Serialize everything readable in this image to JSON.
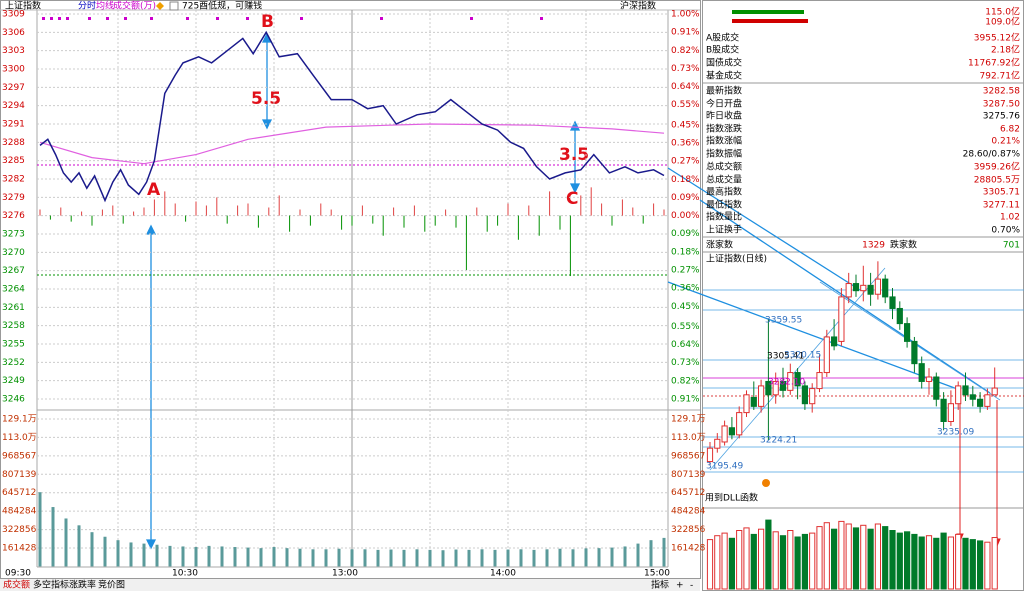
{
  "toolbar": {
    "index_name": "上证指数",
    "view": "分时",
    "legend": [
      "均线",
      "成交额(万)"
    ],
    "notice": "725酉低规，可赚钱",
    "market": "沪深指数"
  },
  "intraday": {
    "price_ticks": [
      3309,
      3306,
      3303,
      3300,
      3297,
      3294,
      3291,
      3288,
      3285,
      3282,
      3279,
      3276,
      3273,
      3270,
      3267,
      3264,
      3261,
      3258,
      3255,
      3252,
      3249,
      3246
    ],
    "pct_ticks": [
      {
        "value": 1.0,
        "label": "1.00%"
      },
      {
        "value": 0.91,
        "label": "0.91%"
      },
      {
        "value": 0.82,
        "label": "0.82%"
      },
      {
        "value": 0.73,
        "label": "0.73%"
      },
      {
        "value": 0.64,
        "label": "0.64%"
      },
      {
        "value": 0.55,
        "label": "0.55%"
      },
      {
        "value": 0.45,
        "label": "0.45%"
      },
      {
        "value": 0.36,
        "label": "0.36%"
      },
      {
        "value": 0.27,
        "label": "0.27%"
      },
      {
        "value": 0.18,
        "label": "0.18%"
      },
      {
        "value": 0.09,
        "label": "0.09%"
      },
      {
        "value": 0,
        "label": "0.00%"
      },
      {
        "value": -0.09,
        "label": "0.09%"
      },
      {
        "value": -0.18,
        "label": "0.18%"
      },
      {
        "value": -0.27,
        "label": "0.27%"
      },
      {
        "value": -0.36,
        "label": "0.36%"
      },
      {
        "value": -0.45,
        "label": "0.45%"
      },
      {
        "value": -0.55,
        "label": "0.55%"
      },
      {
        "value": -0.64,
        "label": "0.64%"
      },
      {
        "value": -0.73,
        "label": "0.73%"
      },
      {
        "value": -0.82,
        "label": "0.82%"
      },
      {
        "value": -0.91,
        "label": "0.91%"
      }
    ],
    "volume_ticks": [
      {
        "value": 1291000,
        "label": "129.1万"
      },
      {
        "value": 1130000,
        "label": "113.0万"
      },
      968567,
      807139,
      645712,
      484284,
      322856,
      161428
    ],
    "time_labels": [
      "09:30",
      "10:30",
      "13:00",
      "14:00",
      "15:00"
    ],
    "price": {
      "minutes": [
        0,
        3,
        6,
        9,
        12,
        15,
        18,
        21,
        25,
        28,
        31,
        34,
        38,
        41,
        44,
        48,
        52,
        55,
        61,
        66,
        72,
        78,
        82,
        87,
        92,
        99,
        105,
        112,
        120,
        126,
        132,
        137,
        145,
        152,
        158,
        164,
        170,
        176,
        181,
        186,
        191,
        196,
        202,
        208,
        213,
        219,
        225,
        230,
        236,
        240
      ],
      "values": [
        3287.5,
        3288.5,
        3286,
        3283,
        3281.5,
        3283,
        3280.5,
        3282.5,
        3278.5,
        3281.5,
        3283.5,
        3281,
        3279.5,
        3281.5,
        3285,
        3296,
        3299,
        3301,
        3302,
        3301,
        3303,
        3305,
        3302.5,
        3306,
        3302,
        3302.5,
        3299,
        3295,
        3295,
        3293.5,
        3294,
        3291,
        3292.5,
        3293,
        3295,
        3293,
        3291,
        3290,
        3288,
        3287,
        3284,
        3282,
        3283,
        3283.5,
        3286,
        3283,
        3284,
        3283,
        3283.5,
        3282.58
      ]
    },
    "average": {
      "minutes": [
        0,
        20,
        40,
        60,
        80,
        110,
        150,
        190,
        220,
        240
      ],
      "values": [
        3288,
        3285.5,
        3284.5,
        3286,
        3288.5,
        3290.5,
        3291,
        3290.8,
        3290.2,
        3289.5
      ]
    },
    "updown": [
      0.03,
      -0.02,
      0.04,
      -0.03,
      0.02,
      -0.05,
      0.03,
      0.05,
      -0.04,
      0.02,
      0.04,
      0.08,
      0.12,
      0.06,
      -0.03,
      0.07,
      0.05,
      0.09,
      -0.04,
      0.05,
      0.06,
      -0.06,
      0.04,
      0.1,
      -0.08,
      0.03,
      -0.05,
      0.06,
      0.03,
      -0.07,
      -0.05,
      0.05,
      -0.04,
      -0.1,
      0.04,
      -0.06,
      0.05,
      -0.08,
      -0.05,
      0.03,
      -0.06,
      -0.27,
      0.04,
      -0.08,
      -0.05,
      0.06,
      -0.12,
      0.05,
      -0.1,
      0.12,
      -0.07,
      -0.3,
      0.1,
      0.14,
      0.06,
      -0.05,
      0.08,
      0.04,
      -0.04,
      0.06,
      0.03
    ],
    "volume": [
      650000,
      520000,
      420000,
      360000,
      300000,
      260000,
      230000,
      210000,
      200000,
      190000,
      180000,
      175000,
      170000,
      180000,
      175000,
      170000,
      165000,
      160000,
      170000,
      160000,
      155000,
      150000,
      150000,
      155000,
      150000,
      150000,
      145000,
      148000,
      145000,
      150000,
      145000,
      142000,
      148000,
      145000,
      150000,
      145000,
      148000,
      150000,
      145000,
      150000,
      155000,
      150000,
      158000,
      160000,
      165000,
      175000,
      200000,
      230000,
      250000
    ],
    "annotations": [
      "A",
      "B",
      "5.5",
      "3.5",
      "C"
    ]
  },
  "bottom_tabs": [
    "成交额",
    "多空指标",
    "涨跌率",
    "竞价图"
  ],
  "bottom_buttons": [
    "指标",
    "+",
    "-"
  ],
  "summary": {
    "bars": [
      "115.0亿",
      "109.0亿"
    ],
    "rows": [
      {
        "label": "A股成交",
        "value": "3955.12亿",
        "color": "#d00000"
      },
      {
        "label": "B股成交",
        "value": "2.18亿",
        "color": "#d00000"
      },
      {
        "label": "国债成交",
        "value": "11767.92亿",
        "color": "#d00000"
      },
      {
        "label": "基金成交",
        "value": "792.71亿",
        "color": "#d00000"
      },
      {
        "label": "最新指数",
        "value": "3282.58",
        "color": "#d00000"
      },
      {
        "label": "今日开盘",
        "value": "3287.50",
        "color": "#d00000"
      },
      {
        "label": "昨日收盘",
        "value": "3275.76",
        "color": "#000000"
      },
      {
        "label": "指数涨跌",
        "value": "6.82",
        "color": "#d00000"
      },
      {
        "label": "指数涨幅",
        "value": "0.21%",
        "color": "#d00000"
      },
      {
        "label": "指数振幅",
        "value": "28.60/0.87%",
        "color": "#000000"
      },
      {
        "label": "总成交额",
        "value": "3959.26亿",
        "color": "#d00000"
      },
      {
        "label": "总成交量",
        "value": "28805.5万",
        "color": "#d00000"
      },
      {
        "label": "最高指数",
        "value": "3305.71",
        "color": "#d00000"
      },
      {
        "label": "最低指数",
        "value": "3277.11",
        "color": "#d00000"
      },
      {
        "label": "指数量比",
        "value": "1.02",
        "color": "#d00000"
      },
      {
        "label": "上证换手",
        "value": "0.70%",
        "color": "#000000"
      }
    ]
  },
  "breadth": {
    "up_label": "涨家数",
    "up": 1329,
    "down_label": "跌家数",
    "down": 701
  },
  "daily": {
    "title": "上证指数(日线)",
    "candles": [
      [
        3200,
        3215,
        3222,
        3196
      ],
      [
        3215,
        3225,
        3232,
        3210
      ],
      [
        3222,
        3240,
        3246,
        3218
      ],
      [
        3238,
        3230,
        3250,
        3225
      ],
      [
        3230,
        3255,
        3262,
        3226
      ],
      [
        3255,
        3275,
        3280,
        3250
      ],
      [
        3272,
        3262,
        3290,
        3258
      ],
      [
        3262,
        3285,
        3292,
        3255
      ],
      [
        3290,
        3275,
        3359.55,
        3224.21
      ],
      [
        3275,
        3290,
        3300,
        3265
      ],
      [
        3290,
        3280,
        3305.41,
        3272
      ],
      [
        3280,
        3300,
        3310,
        3275
      ],
      [
        3300,
        3285,
        3305,
        3270
      ],
      [
        3285,
        3265,
        3290,
        3258
      ],
      [
        3265,
        3282,
        3288,
        3255
      ],
      [
        3282,
        3300,
        3320.15,
        3278
      ],
      [
        3300,
        3340,
        3348,
        3295
      ],
      [
        3340,
        3330,
        3360,
        3325
      ],
      [
        3335,
        3385,
        3395,
        3330
      ],
      [
        3385,
        3400,
        3412,
        3378
      ],
      [
        3400,
        3392,
        3410,
        3385
      ],
      [
        3392,
        3398,
        3420,
        3380
      ],
      [
        3398,
        3388,
        3412,
        3375
      ],
      [
        3388,
        3405,
        3425,
        3382
      ],
      [
        3405,
        3385,
        3410,
        3378
      ],
      [
        3385,
        3372,
        3395,
        3360
      ],
      [
        3372,
        3355,
        3380,
        3348
      ],
      [
        3355,
        3335,
        3362,
        3328
      ],
      [
        3335,
        3310,
        3340,
        3300
      ],
      [
        3310,
        3290,
        3318,
        3282
      ],
      [
        3290,
        3295,
        3305,
        3275
      ],
      [
        3295,
        3270,
        3300,
        3262
      ],
      [
        3270,
        3245,
        3278,
        3235.09
      ],
      [
        3245,
        3265,
        3280,
        3240
      ],
      [
        3265,
        3285,
        3290,
        3258
      ],
      [
        3285,
        3275,
        3300,
        3268
      ],
      [
        3275,
        3270,
        3285,
        3262
      ],
      [
        3270,
        3262,
        3278,
        3255
      ],
      [
        3262,
        3275,
        3282,
        3258
      ],
      [
        3275,
        3282.58,
        3305.71,
        3277.11
      ]
    ],
    "volumes": [
      3800,
      4100,
      4300,
      3900,
      4500,
      4700,
      4200,
      4600,
      5300,
      4400,
      4100,
      4500,
      4000,
      4200,
      4300,
      4800,
      5100,
      4600,
      5200,
      5000,
      4700,
      4900,
      4600,
      5000,
      4800,
      4500,
      4300,
      4400,
      4200,
      4000,
      4100,
      3900,
      4300,
      4000,
      4200,
      3900,
      3800,
      3700,
      3600,
      3959.26
    ],
    "labels": [
      "3359.55",
      "3305.41",
      "3320.15",
      "3282.10",
      "3224.21",
      "3195.49",
      "3235.09"
    ],
    "note": "用到DLL函数"
  }
}
